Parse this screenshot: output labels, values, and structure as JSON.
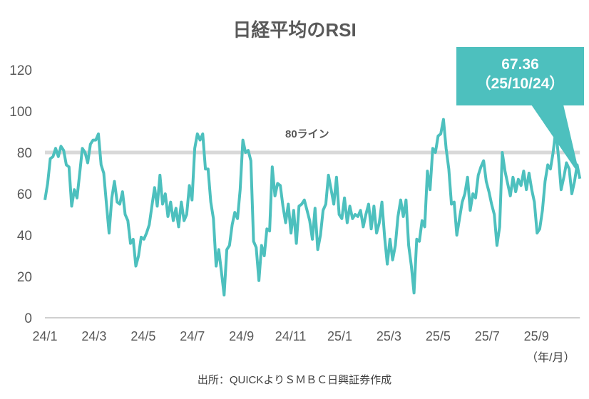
{
  "colors": {
    "line": "#4dc0be",
    "refline": "#d9d9d9",
    "axis": "#bfbfbf",
    "callout": "#4dc0be"
  },
  "chart_data": {
    "type": "line",
    "title": "日経平均のRSI",
    "xlabel": "（年/月）",
    "ylabel": "",
    "ylim": [
      0,
      120
    ],
    "yticks": [
      0,
      20,
      40,
      60,
      80,
      100,
      120
    ],
    "xticks": [
      "24/1",
      "24/3",
      "24/5",
      "24/7",
      "24/9",
      "24/11",
      "25/1",
      "25/3",
      "25/5",
      "25/7",
      "25/9"
    ],
    "x_range_months": [
      0,
      21.77
    ],
    "reference_line": {
      "value": 80,
      "label": "80ライン"
    },
    "annotation": {
      "value": "67.36",
      "date": "（25/10/24）"
    },
    "series": [
      {
        "name": "RSI",
        "values": [
          57,
          65,
          77,
          78,
          82,
          78,
          83,
          81,
          74,
          73,
          54,
          62,
          58,
          70,
          82,
          80,
          75,
          84,
          86,
          86,
          89,
          74,
          70,
          55,
          41,
          58,
          66,
          56,
          55,
          61,
          50,
          47,
          36,
          38,
          25,
          30,
          39,
          38,
          41,
          45,
          54,
          63,
          54,
          69,
          55,
          60,
          49,
          56,
          47,
          53,
          44,
          56,
          47,
          50,
          64,
          57,
          82,
          89,
          86,
          89,
          72,
          72,
          56,
          48,
          25,
          33,
          22,
          11,
          33,
          35,
          45,
          51,
          48,
          62,
          86,
          80,
          81,
          76,
          37,
          34,
          18,
          35,
          30,
          43,
          42,
          73,
          59,
          65,
          64,
          54,
          46,
          55,
          41,
          52,
          36,
          54,
          55,
          57,
          52,
          47,
          38,
          53,
          33,
          40,
          52,
          55,
          69,
          62,
          55,
          68,
          50,
          48,
          58,
          46,
          54,
          48,
          50,
          49,
          52,
          44,
          50,
          55,
          43,
          54,
          41,
          46,
          56,
          39,
          26,
          38,
          28,
          35,
          49,
          57,
          49,
          57,
          35,
          25,
          12,
          38,
          37,
          47,
          44,
          71,
          62,
          82,
          80,
          88,
          89,
          96,
          82,
          72,
          55,
          56,
          40,
          48,
          56,
          60,
          68,
          52,
          60,
          58,
          69,
          73,
          76,
          66,
          61,
          55,
          50,
          35,
          44,
          80,
          71,
          65,
          59,
          68,
          61,
          67,
          64,
          71,
          62,
          70,
          62,
          56,
          41,
          43,
          52,
          66,
          74,
          72,
          80,
          91,
          78,
          62,
          68,
          75,
          72,
          60,
          66,
          74,
          67.36
        ]
      }
    ]
  },
  "source": "出所：QUICKよりＳＭＢＣ日興証券作成"
}
